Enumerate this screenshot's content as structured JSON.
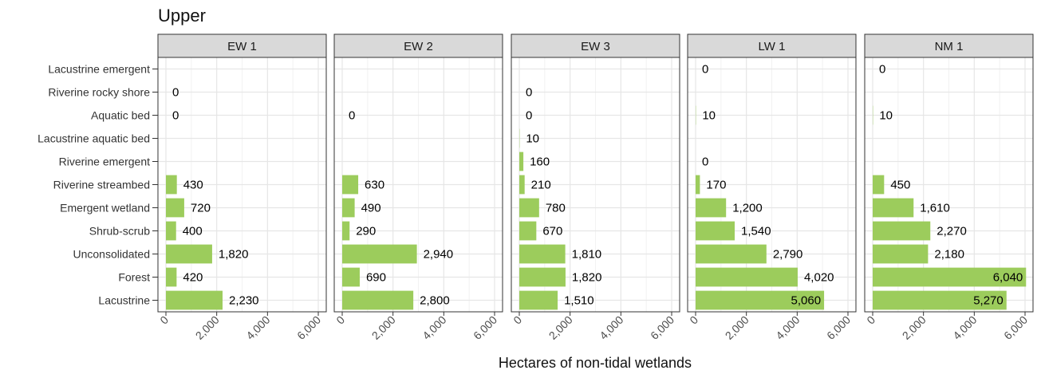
{
  "chart_data": {
    "type": "bar",
    "orientation": "horizontal",
    "title": "Upper",
    "xlabel": "Hectares of non-tidal wetlands",
    "ylabel": "",
    "xlim": [
      0,
      6000
    ],
    "x_ticks": [
      0,
      2000,
      4000,
      6000
    ],
    "x_tick_labels": [
      "0",
      "2,000",
      "4,000",
      "6,000"
    ],
    "grid": true,
    "bar_color": "#9ccc5c",
    "panel_border_color": "#333333",
    "strip_fill": "#d9d9d9",
    "categories": [
      "Lacustrine emergent",
      "Riverine rocky shore",
      "Aquatic bed",
      "Lacustrine aquatic bed",
      "Riverine emergent",
      "Riverine streambed",
      "Emergent wetland",
      "Shrub-scrub",
      "Unconsolidated",
      "Forest",
      "Lacustrine"
    ],
    "panels": [
      {
        "name": "EW 1",
        "values": [
          null,
          0,
          0,
          null,
          null,
          430,
          720,
          400,
          1820,
          420,
          2230
        ],
        "labels": [
          null,
          "0",
          "0",
          null,
          null,
          "430",
          "720",
          "400",
          "1,820",
          "420",
          "2,230"
        ]
      },
      {
        "name": "EW 2",
        "values": [
          null,
          null,
          0,
          null,
          null,
          630,
          490,
          290,
          2940,
          690,
          2800
        ],
        "labels": [
          null,
          null,
          "0",
          null,
          null,
          "630",
          "490",
          "290",
          "2,940",
          "690",
          "2,800"
        ]
      },
      {
        "name": "EW 3",
        "values": [
          null,
          0,
          0,
          10,
          160,
          210,
          780,
          670,
          1810,
          1820,
          1510
        ],
        "labels": [
          null,
          "0",
          "0",
          "10",
          "160",
          "210",
          "780",
          "670",
          "1,810",
          "1,820",
          "1,510"
        ]
      },
      {
        "name": "LW 1",
        "values": [
          0,
          null,
          10,
          null,
          0,
          170,
          1200,
          1540,
          2790,
          4020,
          5060
        ],
        "labels": [
          "0",
          null,
          "10",
          null,
          "0",
          "170",
          "1,200",
          "1,540",
          "2,790",
          "4,020",
          "5,060"
        ]
      },
      {
        "name": "NM 1",
        "values": [
          0,
          null,
          10,
          null,
          null,
          450,
          1610,
          2270,
          2180,
          6040,
          5270
        ],
        "labels": [
          "0",
          null,
          "10",
          null,
          null,
          "450",
          "1,610",
          "2,270",
          "2,180",
          "6,040",
          "5,270"
        ]
      }
    ]
  }
}
